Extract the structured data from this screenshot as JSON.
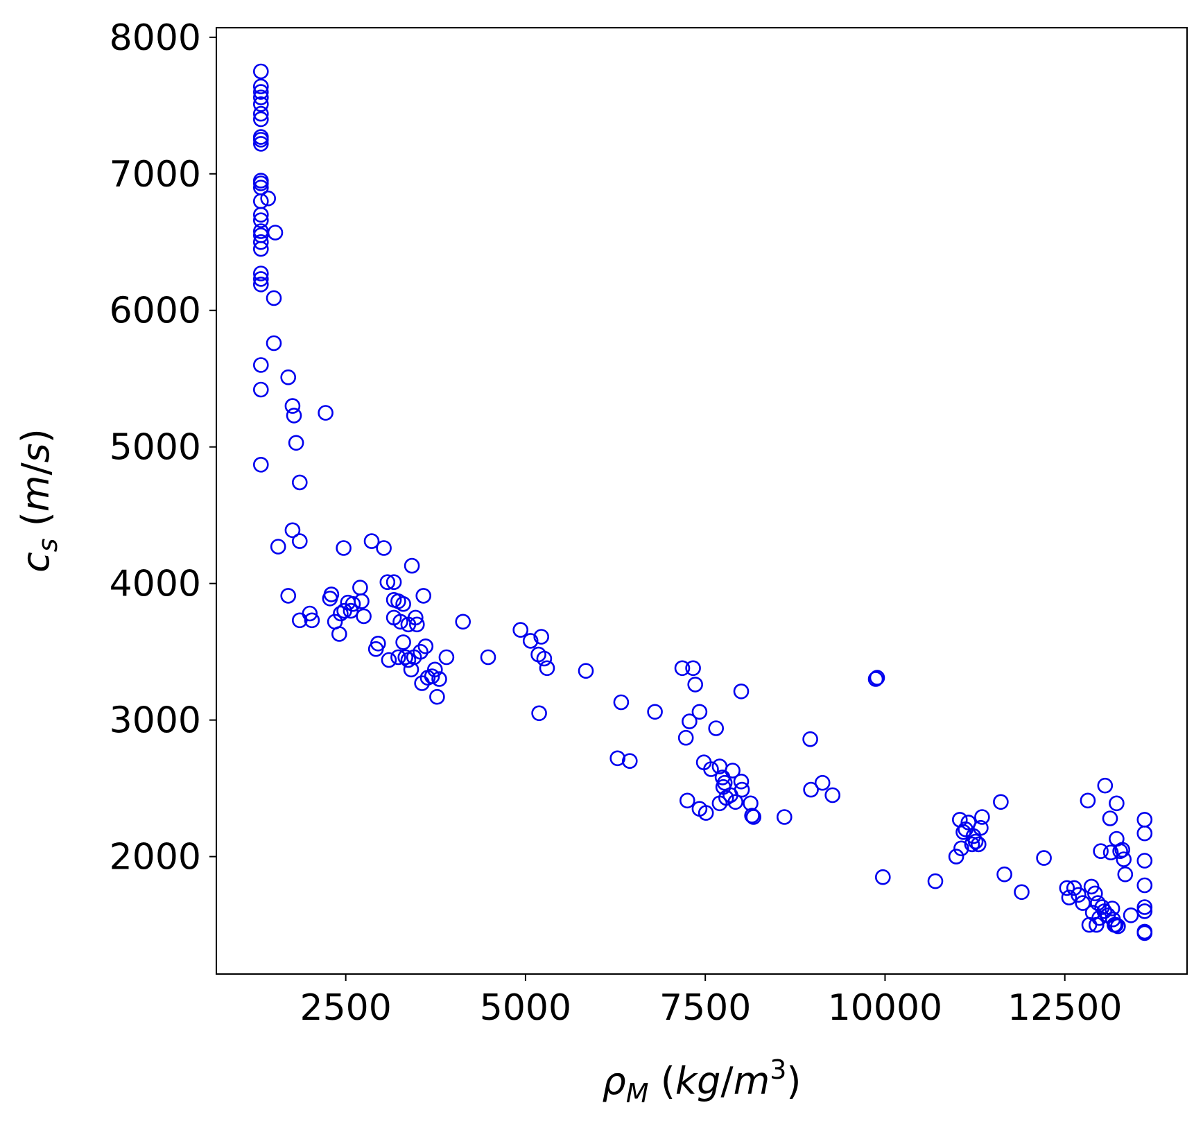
{
  "chart_data": {
    "type": "scatter",
    "xlabel": "ρ_M (kg/m^3)",
    "ylabel": "c_s (m/s)",
    "xlim": [
      700,
      14200
    ],
    "ylim": [
      1140,
      8070
    ],
    "x_ticks": [
      "2500",
      "5000",
      "7500",
      "10000",
      "12500"
    ],
    "x_tick_values": [
      2500,
      5000,
      7500,
      10000,
      12500
    ],
    "y_ticks": [
      "2000",
      "3000",
      "4000",
      "5000",
      "6000",
      "7000",
      "8000"
    ],
    "y_tick_values": [
      2000,
      3000,
      4000,
      5000,
      6000,
      7000,
      8000
    ],
    "grid": false,
    "marker": "open-circle",
    "marker_color": "#0000ee",
    "series": [
      {
        "points": [
          [
            1320,
            7750
          ],
          [
            1320,
            7640
          ],
          [
            1320,
            7600
          ],
          [
            1320,
            7560
          ],
          [
            1320,
            7510
          ],
          [
            1320,
            7440
          ],
          [
            1320,
            7400
          ],
          [
            1320,
            7270
          ],
          [
            1320,
            7250
          ],
          [
            1320,
            7220
          ],
          [
            1320,
            6950
          ],
          [
            1320,
            6930
          ],
          [
            1320,
            6900
          ],
          [
            1320,
            6800
          ],
          [
            1320,
            6700
          ],
          [
            1320,
            6660
          ],
          [
            1320,
            6580
          ],
          [
            1320,
            6550
          ],
          [
            1320,
            6500
          ],
          [
            1320,
            6450
          ],
          [
            1320,
            6270
          ],
          [
            1320,
            6230
          ],
          [
            1320,
            6190
          ],
          [
            1320,
            5600
          ],
          [
            1320,
            5420
          ],
          [
            1320,
            4870
          ],
          [
            1420,
            6820
          ],
          [
            1520,
            6570
          ],
          [
            1500,
            6090
          ],
          [
            1500,
            5760
          ],
          [
            1700,
            5510
          ],
          [
            1760,
            5300
          ],
          [
            1780,
            5230
          ],
          [
            1810,
            5030
          ],
          [
            1860,
            4740
          ],
          [
            1760,
            4390
          ],
          [
            1560,
            4270
          ],
          [
            1860,
            4310
          ],
          [
            1700,
            3910
          ],
          [
            1860,
            3730
          ],
          [
            2000,
            3780
          ],
          [
            2030,
            3730
          ],
          [
            2220,
            5250
          ],
          [
            2280,
            3890
          ],
          [
            2300,
            3920
          ],
          [
            2350,
            3720
          ],
          [
            2410,
            3630
          ],
          [
            2430,
            3780
          ],
          [
            2470,
            4260
          ],
          [
            2480,
            3800
          ],
          [
            2530,
            3860
          ],
          [
            2570,
            3800
          ],
          [
            2600,
            3850
          ],
          [
            2700,
            3970
          ],
          [
            2720,
            3870
          ],
          [
            2750,
            3760
          ],
          [
            2860,
            4310
          ],
          [
            2920,
            3520
          ],
          [
            2950,
            3560
          ],
          [
            3030,
            4260
          ],
          [
            3080,
            4010
          ],
          [
            3100,
            3440
          ],
          [
            3170,
            4010
          ],
          [
            3170,
            3880
          ],
          [
            3170,
            3750
          ],
          [
            3230,
            3870
          ],
          [
            3230,
            3460
          ],
          [
            3260,
            3720
          ],
          [
            3300,
            3850
          ],
          [
            3300,
            3570
          ],
          [
            3330,
            3460
          ],
          [
            3370,
            3440
          ],
          [
            3370,
            3700
          ],
          [
            3410,
            3370
          ],
          [
            3420,
            4130
          ],
          [
            3450,
            3460
          ],
          [
            3470,
            3750
          ],
          [
            3490,
            3700
          ],
          [
            3540,
            3500
          ],
          [
            3560,
            3270
          ],
          [
            3580,
            3910
          ],
          [
            3610,
            3540
          ],
          [
            3640,
            3310
          ],
          [
            3700,
            3320
          ],
          [
            3740,
            3370
          ],
          [
            3770,
            3170
          ],
          [
            3800,
            3300
          ],
          [
            3900,
            3460
          ],
          [
            4130,
            3720
          ],
          [
            4480,
            3460
          ],
          [
            4930,
            3660
          ],
          [
            5070,
            3580
          ],
          [
            5180,
            3480
          ],
          [
            5220,
            3610
          ],
          [
            5260,
            3450
          ],
          [
            5300,
            3380
          ],
          [
            5190,
            3050
          ],
          [
            5840,
            3360
          ],
          [
            6280,
            2720
          ],
          [
            6330,
            3130
          ],
          [
            6450,
            2700
          ],
          [
            6800,
            3060
          ],
          [
            7180,
            3380
          ],
          [
            7330,
            3380
          ],
          [
            7230,
            2870
          ],
          [
            7280,
            2990
          ],
          [
            7360,
            3260
          ],
          [
            7420,
            3060
          ],
          [
            7250,
            2410
          ],
          [
            7420,
            2350
          ],
          [
            7480,
            2690
          ],
          [
            7510,
            2320
          ],
          [
            7580,
            2640
          ],
          [
            7650,
            2940
          ],
          [
            7700,
            2660
          ],
          [
            7700,
            2390
          ],
          [
            7740,
            2580
          ],
          [
            7750,
            2510
          ],
          [
            7770,
            2540
          ],
          [
            7790,
            2430
          ],
          [
            7850,
            2450
          ],
          [
            7880,
            2630
          ],
          [
            7920,
            2400
          ],
          [
            8000,
            2550
          ],
          [
            8010,
            2490
          ],
          [
            8000,
            3210
          ],
          [
            8130,
            2390
          ],
          [
            8150,
            2300
          ],
          [
            8170,
            2290
          ],
          [
            8600,
            2290
          ],
          [
            8960,
            2860
          ],
          [
            8970,
            2490
          ],
          [
            9130,
            2540
          ],
          [
            9270,
            2450
          ],
          [
            9870,
            3300
          ],
          [
            9890,
            3310
          ],
          [
            9970,
            1850
          ],
          [
            10700,
            1820
          ],
          [
            10990,
            2000
          ],
          [
            11040,
            2270
          ],
          [
            11060,
            2060
          ],
          [
            11090,
            2180
          ],
          [
            11120,
            2200
          ],
          [
            11160,
            2250
          ],
          [
            11210,
            2090
          ],
          [
            11230,
            2150
          ],
          [
            11260,
            2110
          ],
          [
            11300,
            2090
          ],
          [
            11330,
            2210
          ],
          [
            11350,
            2290
          ],
          [
            11610,
            2400
          ],
          [
            11660,
            1870
          ],
          [
            11900,
            1740
          ],
          [
            12210,
            1990
          ],
          [
            12530,
            1770
          ],
          [
            12560,
            1700
          ],
          [
            12630,
            1770
          ],
          [
            12690,
            1720
          ],
          [
            12750,
            1660
          ],
          [
            12840,
            1500
          ],
          [
            12820,
            2410
          ],
          [
            12870,
            1780
          ],
          [
            12890,
            1590
          ],
          [
            12920,
            1730
          ],
          [
            12940,
            1500
          ],
          [
            12960,
            1660
          ],
          [
            12980,
            1550
          ],
          [
            13000,
            2040
          ],
          [
            13020,
            1630
          ],
          [
            13050,
            1600
          ],
          [
            13060,
            2520
          ],
          [
            13100,
            1570
          ],
          [
            13130,
            2280
          ],
          [
            13140,
            2030
          ],
          [
            13160,
            1620
          ],
          [
            13170,
            1540
          ],
          [
            13190,
            1500
          ],
          [
            13210,
            1500
          ],
          [
            13220,
            2130
          ],
          [
            13220,
            2390
          ],
          [
            13240,
            1490
          ],
          [
            13270,
            2040
          ],
          [
            13300,
            2050
          ],
          [
            13320,
            1980
          ],
          [
            13340,
            1870
          ],
          [
            13420,
            1570
          ],
          [
            13610,
            2270
          ],
          [
            13610,
            2170
          ],
          [
            13610,
            1970
          ],
          [
            13610,
            1790
          ],
          [
            13610,
            1630
          ],
          [
            13610,
            1600
          ],
          [
            13610,
            1450
          ],
          [
            13610,
            1440
          ]
        ]
      }
    ]
  }
}
